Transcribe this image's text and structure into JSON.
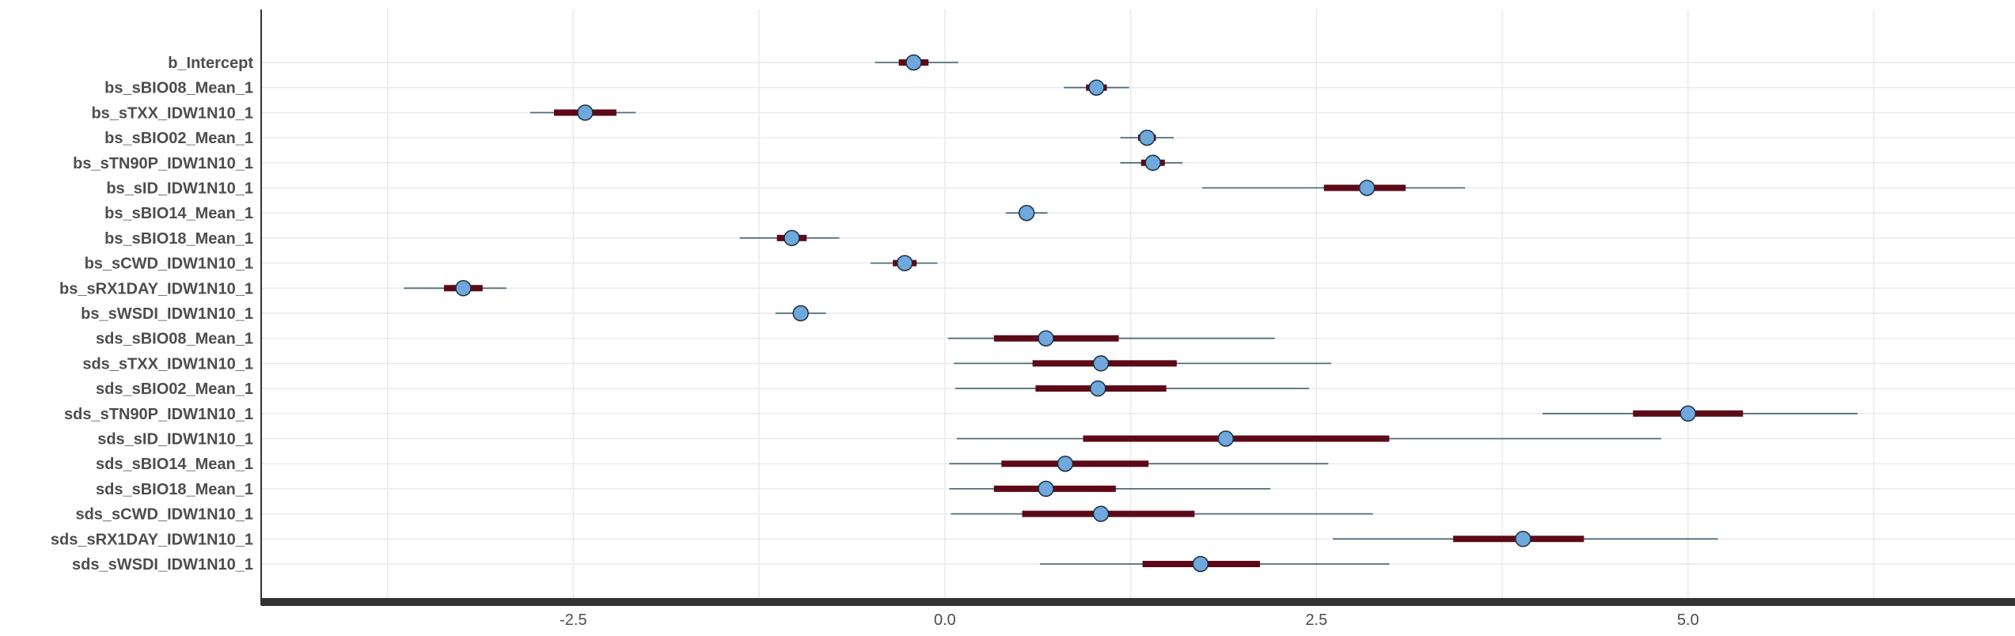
{
  "chart_data": {
    "type": "interval",
    "title": "",
    "xlabel": "",
    "ylabel": "",
    "xlim": [
      -4.6,
      7.2
    ],
    "xticks": [
      {
        "value": -2.5,
        "label": "-2.5"
      },
      {
        "value": 0.0,
        "label": "0.0"
      },
      {
        "value": 2.5,
        "label": "2.5"
      },
      {
        "value": 5.0,
        "label": "5.0"
      }
    ],
    "grid": true,
    "colors": {
      "outer_interval": "#4f6d7a",
      "inner_interval": "#5c0a17",
      "point": "#6fa8dc"
    },
    "parameters": [
      {
        "name": "b_Intercept",
        "point": -0.21,
        "inner": [
          -0.31,
          -0.11
        ],
        "outer": [
          -0.47,
          0.09
        ]
      },
      {
        "name": "bs_sBIO08_Mean_1",
        "point": 1.02,
        "inner": [
          0.95,
          1.09
        ],
        "outer": [
          0.8,
          1.24
        ]
      },
      {
        "name": "bs_sTXX_IDW1N10_1",
        "point": -2.42,
        "inner": [
          -2.63,
          -2.21
        ],
        "outer": [
          -2.79,
          -2.08
        ]
      },
      {
        "name": "bs_sBIO02_Mean_1",
        "point": 1.36,
        "inner": [
          1.3,
          1.42
        ],
        "outer": [
          1.18,
          1.54
        ]
      },
      {
        "name": "bs_sTN90P_IDW1N10_1",
        "point": 1.4,
        "inner": [
          1.32,
          1.48
        ],
        "outer": [
          1.18,
          1.6
        ]
      },
      {
        "name": "bs_sID_IDW1N10_1",
        "point": 2.84,
        "inner": [
          2.55,
          3.1
        ],
        "outer": [
          1.73,
          3.5
        ]
      },
      {
        "name": "bs_sBIO14_Mean_1",
        "point": 0.55,
        "inner": [
          0.52,
          0.58
        ],
        "outer": [
          0.41,
          0.69
        ]
      },
      {
        "name": "bs_sBIO18_Mean_1",
        "point": -1.03,
        "inner": [
          -1.13,
          -0.93
        ],
        "outer": [
          -1.38,
          -0.71
        ]
      },
      {
        "name": "bs_sCWD_IDW1N10_1",
        "point": -0.27,
        "inner": [
          -0.35,
          -0.19
        ],
        "outer": [
          -0.5,
          -0.05
        ]
      },
      {
        "name": "bs_sRX1DAY_IDW1N10_1",
        "point": -3.24,
        "inner": [
          -3.37,
          -3.11
        ],
        "outer": [
          -3.64,
          -2.95
        ]
      },
      {
        "name": "bs_sWSDI_IDW1N10_1",
        "point": -0.97,
        "inner": [
          -1.01,
          -0.93
        ],
        "outer": [
          -1.14,
          -0.8
        ]
      },
      {
        "name": "sds_sBIO08_Mean_1",
        "point": 0.68,
        "inner": [
          0.33,
          1.17
        ],
        "outer": [
          0.02,
          2.22
        ]
      },
      {
        "name": "sds_sTXX_IDW1N10_1",
        "point": 1.05,
        "inner": [
          0.59,
          1.56
        ],
        "outer": [
          0.06,
          2.6
        ]
      },
      {
        "name": "sds_sBIO02_Mean_1",
        "point": 1.03,
        "inner": [
          0.61,
          1.49
        ],
        "outer": [
          0.07,
          2.45
        ]
      },
      {
        "name": "sds_sTN90P_IDW1N10_1",
        "point": 5.0,
        "inner": [
          4.63,
          5.37
        ],
        "outer": [
          4.02,
          6.14
        ]
      },
      {
        "name": "sds_sID_IDW1N10_1",
        "point": 1.89,
        "inner": [
          0.93,
          2.99
        ],
        "outer": [
          0.08,
          4.82
        ]
      },
      {
        "name": "sds_sBIO14_Mean_1",
        "point": 0.81,
        "inner": [
          0.38,
          1.37
        ],
        "outer": [
          0.03,
          2.58
        ]
      },
      {
        "name": "sds_sBIO18_Mean_1",
        "point": 0.68,
        "inner": [
          0.33,
          1.15
        ],
        "outer": [
          0.03,
          2.19
        ]
      },
      {
        "name": "sds_sCWD_IDW1N10_1",
        "point": 1.05,
        "inner": [
          0.52,
          1.68
        ],
        "outer": [
          0.04,
          2.88
        ]
      },
      {
        "name": "sds_sRX1DAY_IDW1N10_1",
        "point": 3.89,
        "inner": [
          3.42,
          4.3
        ],
        "outer": [
          2.61,
          5.2
        ]
      },
      {
        "name": "sds_sWSDI_IDW1N10_1",
        "point": 1.72,
        "inner": [
          1.33,
          2.12
        ],
        "outer": [
          0.64,
          2.99
        ]
      }
    ]
  }
}
